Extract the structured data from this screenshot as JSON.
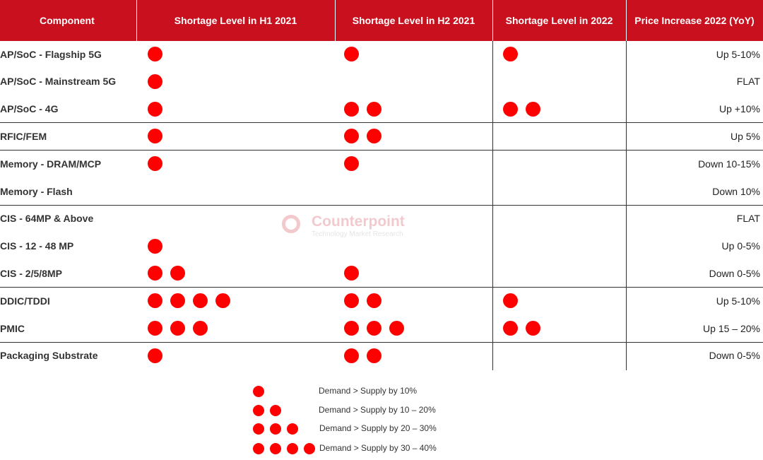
{
  "chart_data": {
    "type": "table",
    "columns": [
      "Component",
      "Shortage Level in H1 2021",
      "Shortage Level in H2 2021",
      "Shortage Level in 2022",
      "Price Increase 2022 (YoY)"
    ],
    "rows": [
      {
        "component": "AP/SoC - Flagship 5G",
        "h1_2021": 1,
        "h2_2021": 1,
        "y2022": 1,
        "price": "Up 5-10%"
      },
      {
        "component": "AP/SoC - Mainstream 5G",
        "h1_2021": 1,
        "h2_2021": 0,
        "y2022": 0,
        "price": "FLAT"
      },
      {
        "component": "AP/SoC - 4G",
        "h1_2021": 1,
        "h2_2021": 2,
        "y2022": 2,
        "price": "Up +10%"
      },
      {
        "component": "RFIC/FEM",
        "h1_2021": 1,
        "h2_2021": 2,
        "y2022": 0,
        "price": "Up 5%"
      },
      {
        "component": "Memory - DRAM/MCP",
        "h1_2021": 1,
        "h2_2021": 1,
        "y2022": 0,
        "price": "Down 10-15%"
      },
      {
        "component": "Memory - Flash",
        "h1_2021": 0,
        "h2_2021": 0,
        "y2022": 0,
        "price": "Down 10%"
      },
      {
        "component": "CIS - 64MP & Above",
        "h1_2021": 0,
        "h2_2021": 0,
        "y2022": 0,
        "price": "FLAT"
      },
      {
        "component": "CIS - 12 - 48 MP",
        "h1_2021": 1,
        "h2_2021": 0,
        "y2022": 0,
        "price": "Up 0-5%"
      },
      {
        "component": "CIS - 2/5/8MP",
        "h1_2021": 2,
        "h2_2021": 1,
        "y2022": 0,
        "price": "Down 0-5%"
      },
      {
        "component": "DDIC/TDDI",
        "h1_2021": 4,
        "h2_2021": 2,
        "y2022": 1,
        "price": "Up 5-10%"
      },
      {
        "component": "PMIC",
        "h1_2021": 3,
        "h2_2021": 3,
        "y2022": 2,
        "price": "Up 15 – 20%"
      },
      {
        "component": "Packaging Substrate",
        "h1_2021": 1,
        "h2_2021": 2,
        "y2022": 0,
        "price": "Down 0-5%"
      }
    ],
    "legend": [
      {
        "dots": 1,
        "label": "Demand > Supply by 10%"
      },
      {
        "dots": 2,
        "label": "Demand > Supply by 10 – 20%"
      },
      {
        "dots": 3,
        "label": "Demand > Supply by 20 – 30%"
      },
      {
        "dots": 4,
        "label": "Demand > Supply by 30 – 40%"
      }
    ],
    "watermark": {
      "name": "Counterpoint",
      "tagline": "Technology Market Research"
    },
    "colors": {
      "header_bg": "#c8101e",
      "dot": "#ff0000",
      "text": "#333333"
    }
  }
}
